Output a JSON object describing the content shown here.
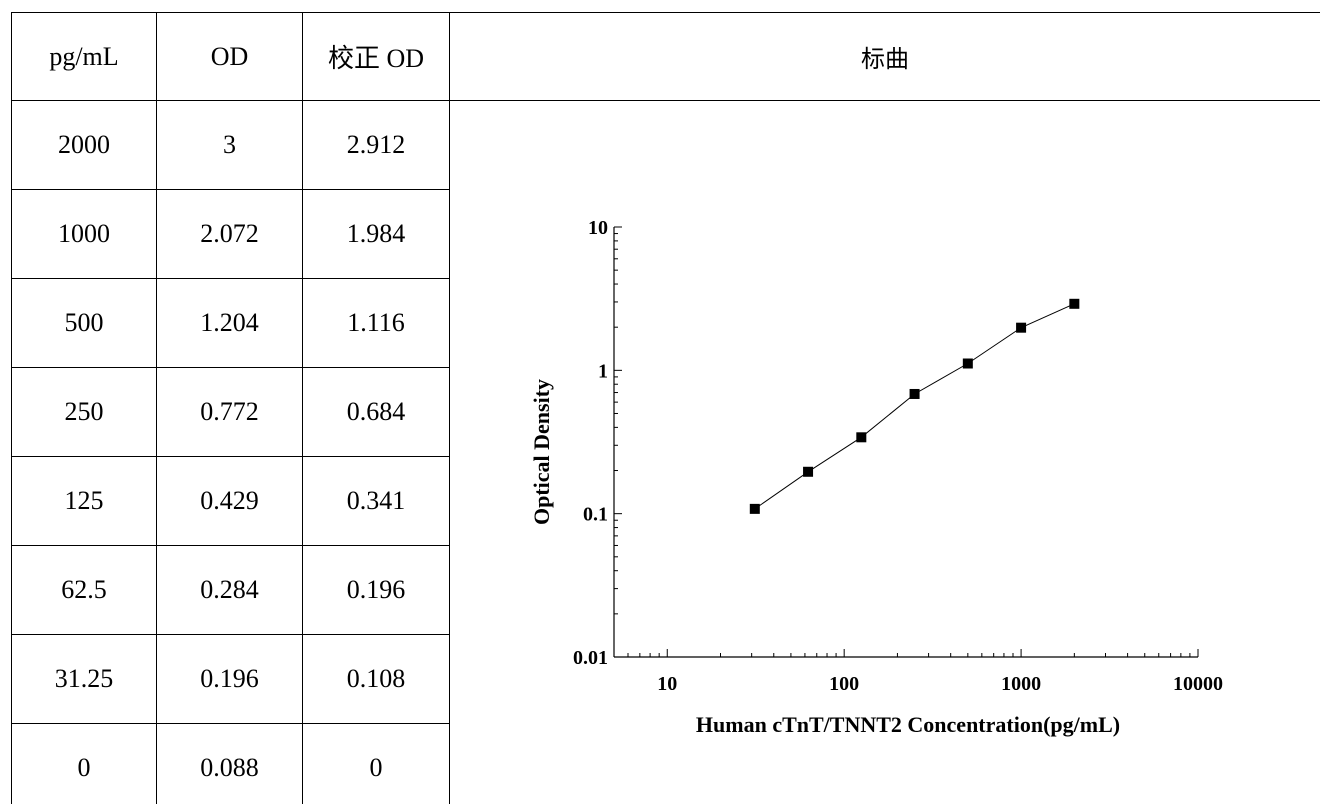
{
  "table": {
    "headers": [
      "pg/mL",
      "OD",
      "校正 OD"
    ],
    "rows": [
      [
        "2000",
        "3",
        "2.912"
      ],
      [
        "1000",
        "2.072",
        "1.984"
      ],
      [
        "500",
        "1.204",
        "1.116"
      ],
      [
        "250",
        "0.772",
        "0.684"
      ],
      [
        "125",
        "0.429",
        "0.341"
      ],
      [
        "62.5",
        "0.284",
        "0.196"
      ],
      [
        "31.25",
        "0.196",
        "0.108"
      ],
      [
        "0",
        "0.088",
        "0"
      ]
    ]
  },
  "chart_header": "标曲",
  "chart_data": {
    "type": "line",
    "xlabel": "Human cTnT/TNNT2 Concentration(pg/mL)",
    "ylabel": "Optical Density",
    "x_scale": "log",
    "y_scale": "log",
    "xlim": [
      5,
      10000
    ],
    "ylim": [
      0.01,
      10
    ],
    "x_ticks": [
      "10",
      "100",
      "1000",
      "10000"
    ],
    "y_ticks": [
      "0.01",
      "0.1",
      "1",
      "10"
    ],
    "grid": false,
    "marker": "square",
    "series": [
      {
        "x": [
          31.25,
          62.5,
          125,
          250,
          500,
          1000,
          2000
        ],
        "y": [
          0.108,
          0.196,
          0.341,
          0.684,
          1.116,
          1.984,
          2.912
        ]
      }
    ]
  }
}
